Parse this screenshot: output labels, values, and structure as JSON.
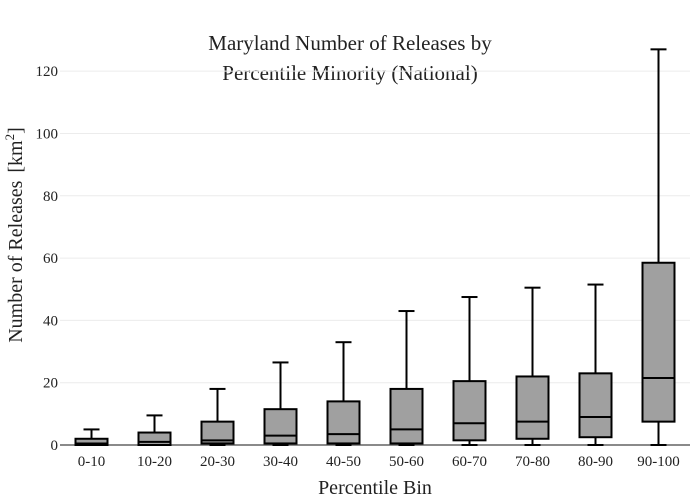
{
  "chart_data": {
    "type": "box",
    "title_lines": [
      "Maryland Number of Releases by",
      "Percentile Minority (National)"
    ],
    "xlabel": "Percentile Bin",
    "ylabel": "Number of Releases",
    "ylabel_unit_base": "[km",
    "ylabel_unit_exp": "2",
    "ylabel_unit_close": "]",
    "ylim": [
      0,
      130
    ],
    "yticks": [
      0,
      20,
      40,
      60,
      80,
      100,
      120
    ],
    "ytick_labels": [
      "0",
      "20",
      "40",
      "60",
      "80",
      "100",
      "120"
    ],
    "grid": true,
    "categories": [
      "0-10",
      "10-20",
      "20-30",
      "30-40",
      "40-50",
      "50-60",
      "60-70",
      "70-80",
      "80-90",
      "90-100"
    ],
    "boxes": [
      {
        "min": 0,
        "q1": 0,
        "median": 0.5,
        "q3": 2,
        "max": 5
      },
      {
        "min": 0,
        "q1": 0,
        "median": 1,
        "q3": 4,
        "max": 9.5
      },
      {
        "min": 0,
        "q1": 0.5,
        "median": 1.5,
        "q3": 7.5,
        "max": 18
      },
      {
        "min": 0,
        "q1": 0.5,
        "median": 3,
        "q3": 11.5,
        "max": 26.5
      },
      {
        "min": 0,
        "q1": 0.5,
        "median": 3.5,
        "q3": 14,
        "max": 33
      },
      {
        "min": 0,
        "q1": 0.5,
        "median": 5,
        "q3": 18,
        "max": 43
      },
      {
        "min": 0,
        "q1": 1.5,
        "median": 7,
        "q3": 20.5,
        "max": 47.5
      },
      {
        "min": 0,
        "q1": 2,
        "median": 7.5,
        "q3": 22,
        "max": 50.5
      },
      {
        "min": 0,
        "q1": 2.5,
        "median": 9,
        "q3": 23,
        "max": 51.5
      },
      {
        "min": 0,
        "q1": 7.5,
        "median": 21.5,
        "q3": 58.5,
        "max": 127
      }
    ],
    "colors": {
      "box_fill": "#a0a0a0",
      "box_stroke": "#000000"
    }
  }
}
